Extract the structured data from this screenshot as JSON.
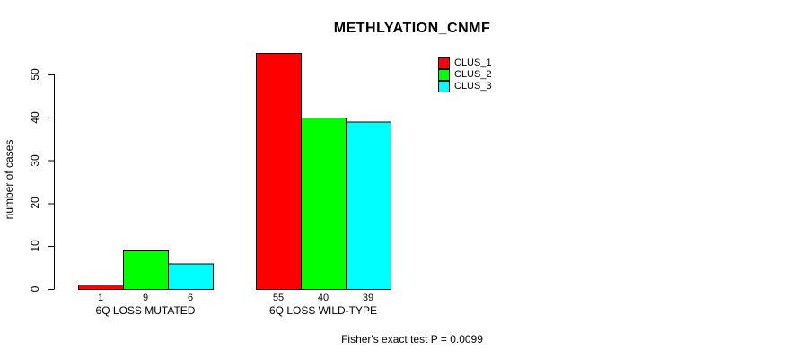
{
  "chart_data": {
    "type": "bar",
    "title": "METHLYATION_CNMF",
    "ylabel": "number of cases",
    "xlabel": "",
    "categories": [
      "6Q LOSS MUTATED",
      "6Q LOSS WILD-TYPE"
    ],
    "series": [
      {
        "name": "CLUS_1",
        "color": "#ff0000",
        "values": [
          1,
          55
        ]
      },
      {
        "name": "CLUS_2",
        "color": "#00ff00",
        "values": [
          9,
          40
        ]
      },
      {
        "name": "CLUS_3",
        "color": "#00ffff",
        "values": [
          6,
          39
        ]
      }
    ],
    "yticks": [
      0,
      10,
      20,
      30,
      40,
      50
    ],
    "ylim": [
      0,
      50
    ],
    "grid": false,
    "bar_value_labels_shown": true,
    "legend_position": "top-right",
    "annotation": "Fisher's exact test P = 0.0099"
  }
}
